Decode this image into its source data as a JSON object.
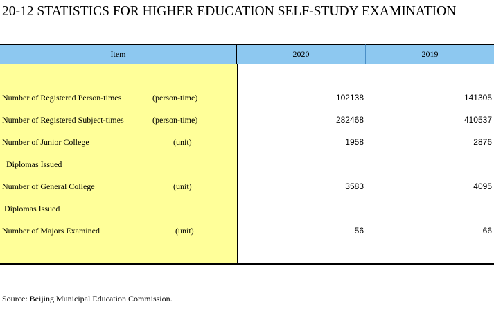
{
  "title": "20-12  STATISTICS FOR HIGHER EDUCATION SELF-STUDY EXAMINATION",
  "header": {
    "item": "Item",
    "year1": "2020",
    "year2": "2019"
  },
  "rows": [
    {
      "label": "Number of Registered Person-times",
      "unit": "(person-time)",
      "v2020": "102138",
      "v2019": "141305"
    },
    {
      "label": "Number of Registered Subject-times",
      "unit": "(person-time)",
      "v2020": "282468",
      "v2019": "410537"
    },
    {
      "label": "Number of Junior College",
      "unit": "(unit)",
      "v2020": "1958",
      "v2019": "2876"
    },
    {
      "label": " Diplomas Issued",
      "unit": "",
      "v2020": "",
      "v2019": ""
    },
    {
      "label": "Number of General College",
      "unit": "(unit)",
      "v2020": "3583",
      "v2019": "4095"
    },
    {
      "label": "Diplomas Issued",
      "unit": "",
      "v2020": "",
      "v2019": ""
    },
    {
      "label": "Number of Majors Examined",
      "unit": "(unit)",
      "v2020": "56",
      "v2019": "66"
    }
  ],
  "source": "Source: Beijing Municipal Education Commission.",
  "colors": {
    "header_bg": "#8dc8f0",
    "item_col_bg": "#ffff99"
  }
}
